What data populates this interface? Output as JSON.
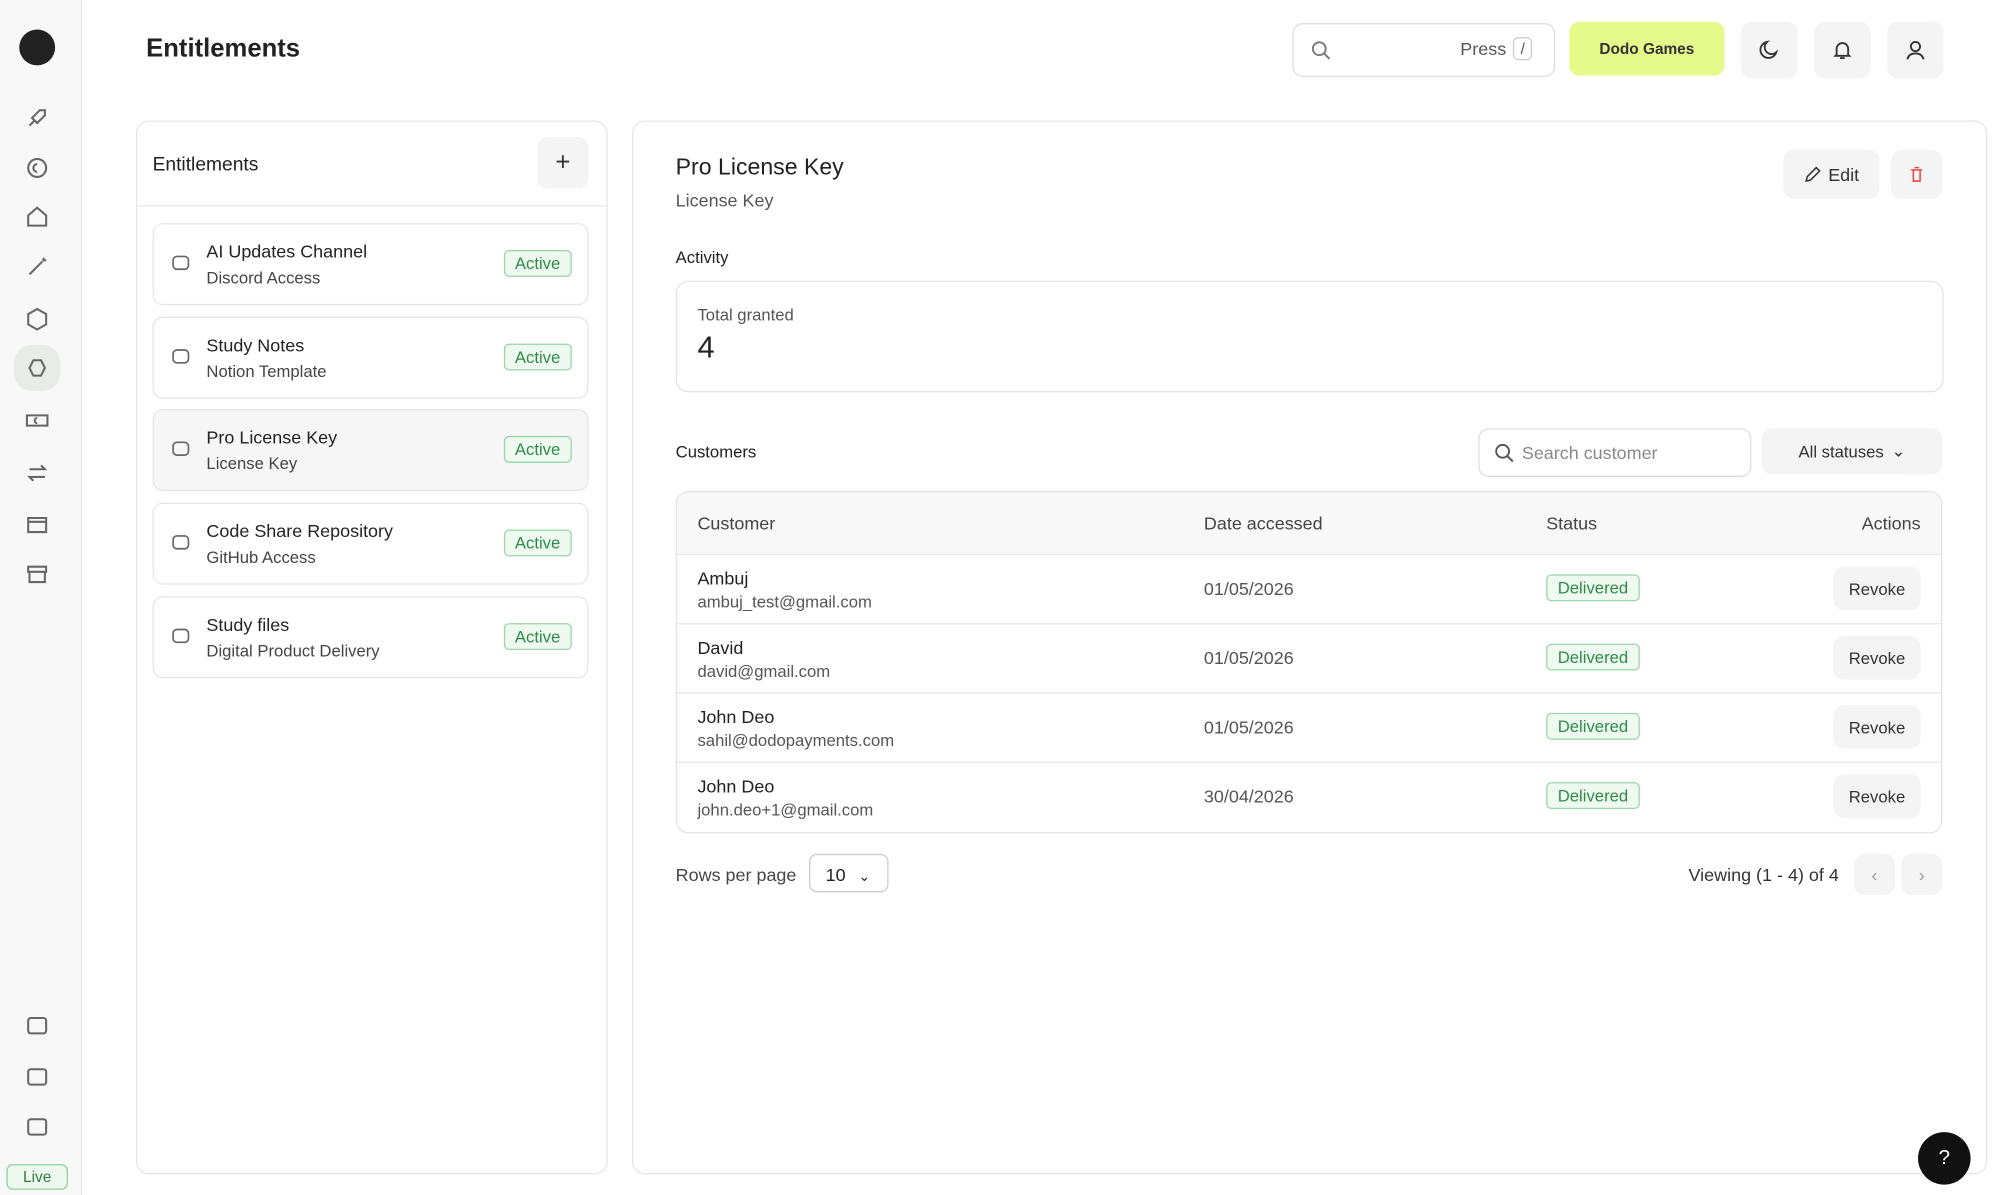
{
  "header": {
    "title": "Entitlements",
    "search_hint": "Press",
    "search_key": "/",
    "org": "Dodo Games"
  },
  "sidebar": {
    "mode": "Live"
  },
  "list": {
    "title": "Entitlements",
    "items": [
      {
        "name": "AI Updates Channel",
        "type": "Discord Access",
        "status": "Active"
      },
      {
        "name": "Study Notes",
        "type": "Notion Template",
        "status": "Active"
      },
      {
        "name": "Pro License Key",
        "type": "License Key",
        "status": "Active"
      },
      {
        "name": "Code Share Repository",
        "type": "GitHub Access",
        "status": "Active"
      },
      {
        "name": "Study files",
        "type": "Digital Product Delivery",
        "status": "Active"
      }
    ]
  },
  "detail": {
    "title": "Pro License Key",
    "subtitle": "License Key",
    "edit": "Edit",
    "activity_label": "Activity",
    "total_label": "Total granted",
    "total": 4,
    "customers_label": "Customers",
    "search_placeholder": "Search customer",
    "filter": "All statuses",
    "table": {
      "columns": [
        "Customer",
        "Date accessed",
        "Status",
        "Actions"
      ],
      "rows": [
        {
          "name": "Ambuj",
          "email": "ambuj_test@gmail.com",
          "date": "01/05/2026",
          "status": "Delivered",
          "action": "Revoke"
        },
        {
          "name": "David",
          "email": "david@gmail.com",
          "date": "01/05/2026",
          "status": "Delivered",
          "action": "Revoke"
        },
        {
          "name": "John Deo",
          "email": "sahil@dodopayments.com",
          "date": "01/05/2026",
          "status": "Delivered",
          "action": "Revoke"
        },
        {
          "name": "John Deo",
          "email": "john.deo+1@gmail.com",
          "date": "30/04/2026",
          "status": "Delivered",
          "action": "Revoke"
        }
      ]
    },
    "rows_per_page_label": "Rows per page",
    "rows_per_page": 10,
    "viewing": "Viewing (1 - 4) of 4"
  }
}
